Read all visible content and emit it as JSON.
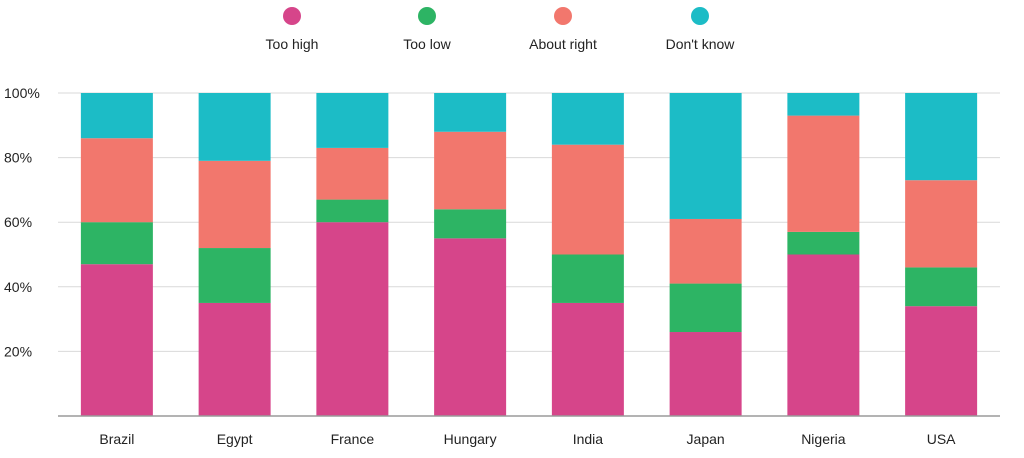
{
  "chart_data": {
    "type": "bar",
    "stacked": true,
    "title": "",
    "xlabel": "",
    "ylabel": "",
    "ylim": [
      0,
      100
    ],
    "yticks": [
      20,
      40,
      60,
      80,
      100
    ],
    "ytick_labels": [
      "20%",
      "40%",
      "60%",
      "80%",
      "100%"
    ],
    "grid": true,
    "legend_position": "top",
    "categories": [
      "Brazil",
      "Egypt",
      "France",
      "Hungary",
      "India",
      "Japan",
      "Nigeria",
      "USA"
    ],
    "series": [
      {
        "name": "Too high",
        "color": "#d6458a",
        "values": [
          47,
          35,
          60,
          55,
          35,
          26,
          50,
          34
        ]
      },
      {
        "name": "Too low",
        "color": "#2db464",
        "values": [
          13,
          17,
          7,
          9,
          15,
          15,
          7,
          12
        ]
      },
      {
        "name": "About right",
        "color": "#f2776d",
        "values": [
          26,
          27,
          16,
          24,
          34,
          20,
          36,
          27
        ]
      },
      {
        "name": "Don't know",
        "color": "#1cbcc6",
        "values": [
          14,
          21,
          17,
          12,
          16,
          39,
          7,
          27
        ]
      }
    ]
  }
}
